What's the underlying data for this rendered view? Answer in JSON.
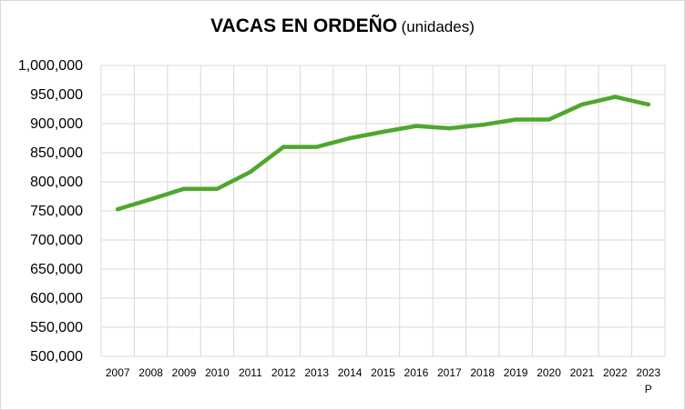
{
  "chart_data": {
    "type": "line",
    "title": "VACAS EN ORDEÑO",
    "subtitle": "(unidades)",
    "xlabel": "",
    "ylabel": "",
    "ylim": [
      500000,
      1000000
    ],
    "y_ticks": [
      "500,000",
      "550,000",
      "600,000",
      "650,000",
      "700,000",
      "750,000",
      "800,000",
      "850,000",
      "900,000",
      "950,000",
      "1,000,000"
    ],
    "categories": [
      "2007",
      "2008",
      "2009",
      "2010",
      "2011",
      "2012",
      "2013",
      "2014",
      "2015",
      "2016",
      "2017",
      "2018",
      "2019",
      "2020",
      "2021",
      "2022",
      "2023"
    ],
    "category_sublabels": [
      "",
      "",
      "",
      "",
      "",
      "",
      "",
      "",
      "",
      "",
      "",
      "",
      "",
      "",
      "",
      "",
      "P"
    ],
    "grid": true,
    "legend": "none",
    "series": [
      {
        "color": "#4ea72e",
        "values": [
          753000,
          770000,
          788000,
          788000,
          817000,
          860000,
          860000,
          875000,
          886000,
          896000,
          892000,
          898000,
          907000,
          907000,
          933000,
          946000,
          933000
        ]
      }
    ]
  }
}
